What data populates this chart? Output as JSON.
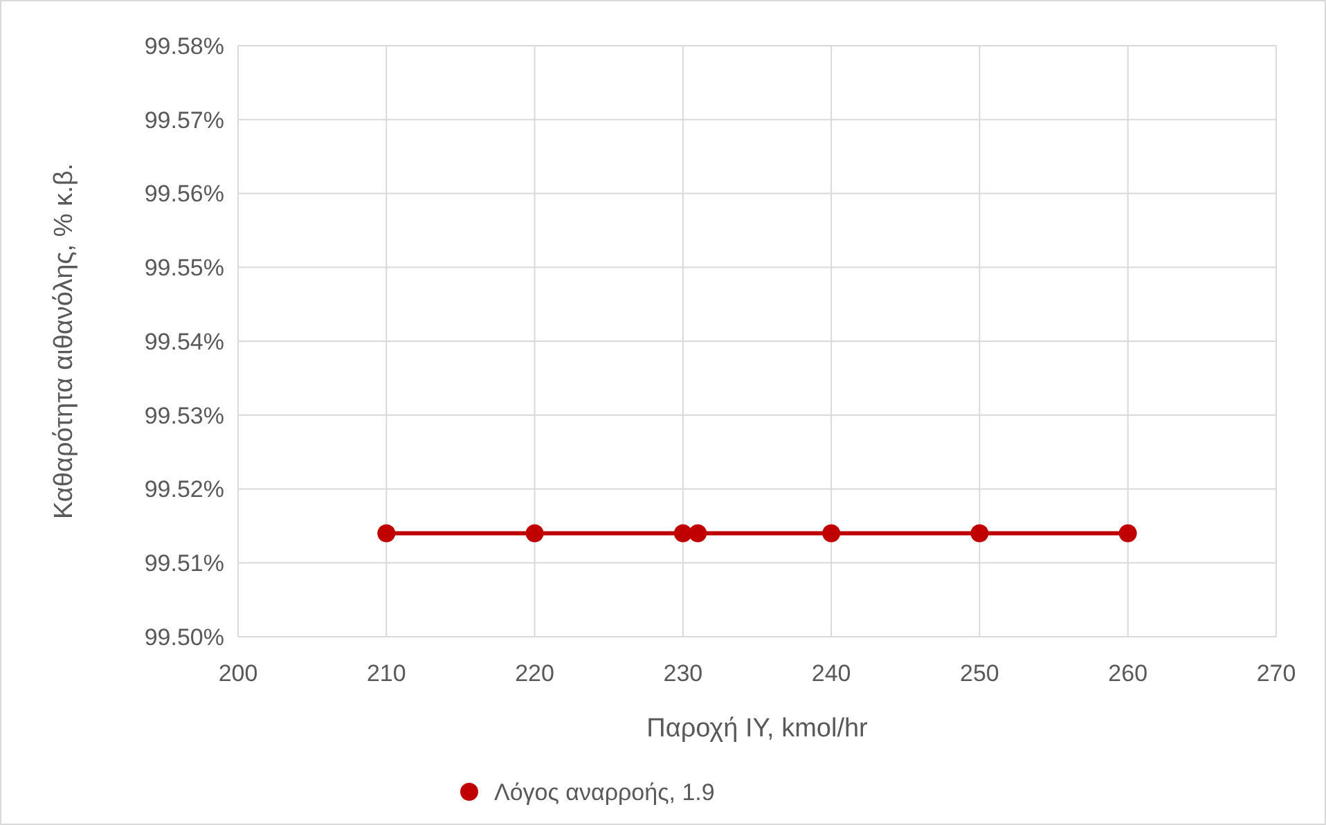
{
  "chart_data": {
    "type": "line",
    "xlabel": "Παροχή ΙΥ, kmol/hr",
    "ylabel": "Καθαρότητα αιθανόλης, % κ.β.",
    "x": [
      210,
      220,
      230,
      231,
      240,
      250,
      260
    ],
    "series": [
      {
        "name": "Λόγος αναρροής, 1.9",
        "color": "#c00000",
        "values": [
          99.514,
          99.514,
          99.514,
          99.514,
          99.514,
          99.514,
          99.514
        ]
      }
    ],
    "xlim": [
      200,
      270
    ],
    "xticks": [
      200,
      210,
      220,
      230,
      240,
      250,
      260,
      270
    ],
    "ylim": [
      99.5,
      99.58
    ],
    "yticks": [
      {
        "value": 99.5,
        "label": "99.50%"
      },
      {
        "value": 99.51,
        "label": "99.51%"
      },
      {
        "value": 99.52,
        "label": "99.52%"
      },
      {
        "value": 99.53,
        "label": "99.53%"
      },
      {
        "value": 99.54,
        "label": "99.54%"
      },
      {
        "value": 99.55,
        "label": "99.55%"
      },
      {
        "value": 99.56,
        "label": "99.56%"
      },
      {
        "value": 99.57,
        "label": "99.57%"
      },
      {
        "value": 99.58,
        "label": "99.58%"
      }
    ],
    "grid": true,
    "legend": "bottom",
    "marker": "circle",
    "line_style": "solid"
  }
}
